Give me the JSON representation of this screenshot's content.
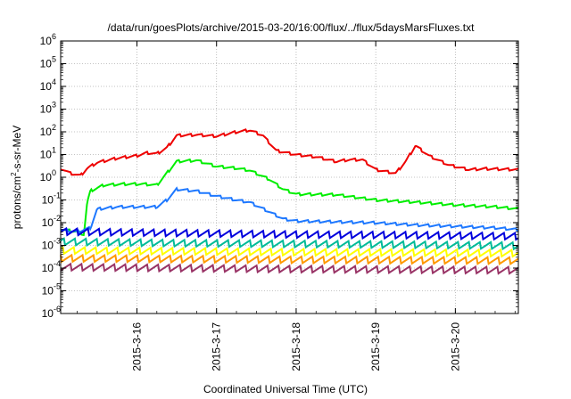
{
  "chart_data": {
    "type": "line",
    "title": "/data/run/goesPlots/archive/2015-03-20/16:00/flux/../flux/5daysMarsFluxes.txt",
    "xlabel": "Coordinated Universal Time (UTC)",
    "ylabel": "protons/cm2-s-sr-MeV",
    "ylabel_parts": {
      "base": "protons/cm",
      "sup": "2",
      "rest": "-s-sr-MeV"
    },
    "y_scale": "log",
    "ylim_exp": [
      -6,
      6
    ],
    "y_ticks": [
      {
        "exp": -6,
        "base": "10",
        "sup": "-6"
      },
      {
        "exp": -5,
        "base": "10",
        "sup": "-5"
      },
      {
        "exp": -4,
        "base": "10",
        "sup": "-4"
      },
      {
        "exp": -3,
        "base": "10",
        "sup": "-3"
      },
      {
        "exp": -2,
        "base": "10",
        "sup": "-2"
      },
      {
        "exp": -1,
        "base": "10",
        "sup": "-1"
      },
      {
        "exp": 0,
        "base": "10",
        "sup": "0"
      },
      {
        "exp": 1,
        "base": "10",
        "sup": "1"
      },
      {
        "exp": 2,
        "base": "10",
        "sup": "2"
      },
      {
        "exp": 3,
        "base": "10",
        "sup": "3"
      },
      {
        "exp": 4,
        "base": "10",
        "sup": "4"
      },
      {
        "exp": 5,
        "base": "10",
        "sup": "5"
      },
      {
        "exp": 6,
        "base": "10",
        "sup": "6"
      }
    ],
    "x_range": [
      "2015-03-15T01:00",
      "2015-03-20T19:00"
    ],
    "x_ticks": [
      {
        "label": "2015-3-16",
        "time": "2015-03-16T00:00"
      },
      {
        "label": "2015-3-17",
        "time": "2015-03-17T00:00"
      },
      {
        "label": "2015-3-18",
        "time": "2015-03-18T00:00"
      },
      {
        "label": "2015-3-19",
        "time": "2015-03-19T00:00"
      },
      {
        "label": "2015-3-20",
        "time": "2015-03-20T00:00"
      }
    ],
    "grid": true,
    "sawtooth_period_hours": 3.3,
    "series": [
      {
        "color": "#ee0000",
        "points": [
          [
            "2015-03-15T01:00",
            2.5
          ],
          [
            "2015-03-15T04:00",
            1.5
          ],
          [
            "2015-03-15T07:00",
            1.2
          ],
          [
            "2015-03-15T09:00",
            2.5
          ],
          [
            "2015-03-15T12:00",
            4.5
          ],
          [
            "2015-03-15T18:00",
            7
          ],
          [
            "2015-03-16T00:00",
            9
          ],
          [
            "2015-03-16T03:00",
            12
          ],
          [
            "2015-03-16T06:00",
            11
          ],
          [
            "2015-03-16T09:00",
            20
          ],
          [
            "2015-03-16T12:00",
            70
          ],
          [
            "2015-03-16T18:00",
            75
          ],
          [
            "2015-03-17T00:00",
            65
          ],
          [
            "2015-03-17T06:00",
            100
          ],
          [
            "2015-03-17T10:00",
            120
          ],
          [
            "2015-03-17T14:00",
            70
          ],
          [
            "2015-03-17T18:00",
            15
          ],
          [
            "2015-03-18T00:00",
            10
          ],
          [
            "2015-03-18T06:00",
            8
          ],
          [
            "2015-03-18T12:00",
            5
          ],
          [
            "2015-03-18T16:00",
            6
          ],
          [
            "2015-03-18T20:00",
            6
          ],
          [
            "2015-03-19T00:00",
            2.2
          ],
          [
            "2015-03-19T06:00",
            1.5
          ],
          [
            "2015-03-19T09:00",
            5
          ],
          [
            "2015-03-19T12:00",
            25
          ],
          [
            "2015-03-19T16:00",
            9
          ],
          [
            "2015-03-19T22:00",
            3.5
          ],
          [
            "2015-03-20T04:00",
            2.2
          ],
          [
            "2015-03-20T09:00",
            2.4
          ],
          [
            "2015-03-20T19:00",
            2.2
          ]
        ]
      },
      {
        "color": "#00ee00",
        "points": [
          [
            "2015-03-15T01:00",
            0.005
          ],
          [
            "2015-03-15T06:00",
            0.004
          ],
          [
            "2015-03-15T08:00",
            0.003
          ],
          [
            "2015-03-15T09:00",
            0.08
          ],
          [
            "2015-03-15T10:00",
            0.25
          ],
          [
            "2015-03-15T14:00",
            0.45
          ],
          [
            "2015-03-15T20:00",
            0.5
          ],
          [
            "2015-03-16T02:00",
            0.5
          ],
          [
            "2015-03-16T06:00",
            0.45
          ],
          [
            "2015-03-16T09:00",
            1.5
          ],
          [
            "2015-03-16T12:00",
            5
          ],
          [
            "2015-03-16T18:00",
            5.5
          ],
          [
            "2015-03-17T00:00",
            3
          ],
          [
            "2015-03-17T06:00",
            2.5
          ],
          [
            "2015-03-17T10:00",
            2
          ],
          [
            "2015-03-17T16:00",
            0.8
          ],
          [
            "2015-03-17T20:00",
            0.3
          ],
          [
            "2015-03-18T00:00",
            0.18
          ],
          [
            "2015-03-18T12:00",
            0.17
          ],
          [
            "2015-03-19T00:00",
            0.1
          ],
          [
            "2015-03-19T12:00",
            0.08
          ],
          [
            "2015-03-20T00:00",
            0.06
          ],
          [
            "2015-03-20T12:00",
            0.05
          ],
          [
            "2015-03-20T19:00",
            0.04
          ]
        ]
      },
      {
        "color": "#1e78ff",
        "points": [
          [
            "2015-03-15T01:00",
            0.005
          ],
          [
            "2015-03-15T06:00",
            0.004
          ],
          [
            "2015-03-15T10:00",
            0.006
          ],
          [
            "2015-03-15T12:00",
            0.04
          ],
          [
            "2015-03-15T18:00",
            0.05
          ],
          [
            "2015-03-16T00:00",
            0.05
          ],
          [
            "2015-03-16T06:00",
            0.05
          ],
          [
            "2015-03-16T09:00",
            0.1
          ],
          [
            "2015-03-16T12:00",
            0.3
          ],
          [
            "2015-03-16T18:00",
            0.25
          ],
          [
            "2015-03-17T00:00",
            0.15
          ],
          [
            "2015-03-17T06:00",
            0.1
          ],
          [
            "2015-03-17T10:00",
            0.08
          ],
          [
            "2015-03-17T16:00",
            0.03
          ],
          [
            "2015-03-17T20:00",
            0.015
          ],
          [
            "2015-03-18T00:00",
            0.012
          ],
          [
            "2015-03-18T12:00",
            0.011
          ],
          [
            "2015-03-19T00:00",
            0.01
          ],
          [
            "2015-03-19T12:00",
            0.008
          ],
          [
            "2015-03-20T00:00",
            0.007
          ],
          [
            "2015-03-20T12:00",
            0.006
          ],
          [
            "2015-03-20T19:00",
            0.005
          ]
        ]
      },
      {
        "color": "#0000dd",
        "points": [
          [
            "2015-03-15T01:00",
            0.004
          ],
          [
            "2015-03-16T12:00",
            0.0035
          ],
          [
            "2015-03-18T00:00",
            0.003
          ],
          [
            "2015-03-19T12:00",
            0.0028
          ],
          [
            "2015-03-20T19:00",
            0.0025
          ]
        ]
      },
      {
        "color": "#00bb99",
        "points": [
          [
            "2015-03-15T01:00",
            0.0015
          ],
          [
            "2015-03-16T12:00",
            0.0013
          ],
          [
            "2015-03-18T00:00",
            0.0012
          ],
          [
            "2015-03-19T12:00",
            0.0011
          ],
          [
            "2015-03-20T19:00",
            0.001
          ]
        ]
      },
      {
        "color": "#ffff00",
        "points": [
          [
            "2015-03-15T01:00",
            0.0006
          ],
          [
            "2015-03-16T12:00",
            0.00055
          ],
          [
            "2015-03-18T00:00",
            0.0005
          ],
          [
            "2015-03-19T12:00",
            0.00048
          ],
          [
            "2015-03-20T19:00",
            0.00045
          ]
        ]
      },
      {
        "color": "#ff9900",
        "points": [
          [
            "2015-03-15T01:00",
            0.00028
          ],
          [
            "2015-03-16T12:00",
            0.00026
          ],
          [
            "2015-03-18T00:00",
            0.00024
          ],
          [
            "2015-03-19T12:00",
            0.00023
          ],
          [
            "2015-03-20T19:00",
            0.00022
          ]
        ]
      },
      {
        "color": "#993366",
        "points": [
          [
            "2015-03-15T01:00",
            0.00011
          ],
          [
            "2015-03-16T12:00",
            0.0001
          ],
          [
            "2015-03-18T00:00",
            9e-05
          ],
          [
            "2015-03-19T12:00",
            8.5e-05
          ],
          [
            "2015-03-20T19:00",
            8e-05
          ]
        ]
      }
    ]
  }
}
